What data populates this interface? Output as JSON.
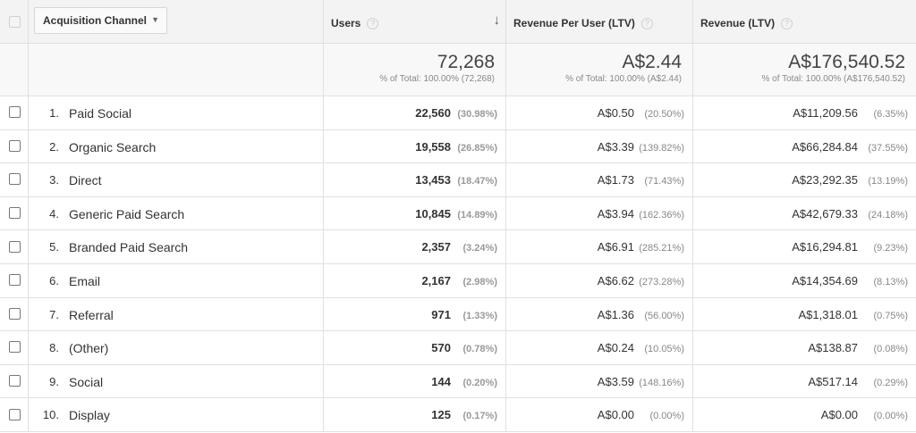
{
  "header": {
    "dimension_label": "Acquisition Channel",
    "columns": [
      {
        "label": "Users"
      },
      {
        "label": "Revenue Per User (LTV)"
      },
      {
        "label": "Revenue (LTV)"
      }
    ],
    "help_glyph": "?",
    "sort_glyph": "↓",
    "caret_glyph": "▼"
  },
  "totals": {
    "users": {
      "value": "72,268",
      "sub": "% of Total: 100.00% (72,268)"
    },
    "rpu": {
      "value": "A$2.44",
      "sub": "% of Total: 100.00% (A$2.44)"
    },
    "revenue": {
      "value": "A$176,540.52",
      "sub": "% of Total: 100.00% (A$176,540.52)"
    }
  },
  "rows": [
    {
      "rank": "1.",
      "channel": "Paid Social",
      "users": "22,560",
      "users_pct": "(30.98%)",
      "rpu": "A$0.50",
      "rpu_pct": "(20.50%)",
      "revenue": "A$11,209.56",
      "revenue_pct": "(6.35%)"
    },
    {
      "rank": "2.",
      "channel": "Organic Search",
      "users": "19,558",
      "users_pct": "(26.85%)",
      "rpu": "A$3.39",
      "rpu_pct": "(139.82%)",
      "revenue": "A$66,284.84",
      "revenue_pct": "(37.55%)"
    },
    {
      "rank": "3.",
      "channel": "Direct",
      "users": "13,453",
      "users_pct": "(18.47%)",
      "rpu": "A$1.73",
      "rpu_pct": "(71.43%)",
      "revenue": "A$23,292.35",
      "revenue_pct": "(13.19%)"
    },
    {
      "rank": "4.",
      "channel": "Generic Paid Search",
      "users": "10,845",
      "users_pct": "(14.89%)",
      "rpu": "A$3.94",
      "rpu_pct": "(162.36%)",
      "revenue": "A$42,679.33",
      "revenue_pct": "(24.18%)"
    },
    {
      "rank": "5.",
      "channel": "Branded Paid Search",
      "users": "2,357",
      "users_pct": "(3.24%)",
      "rpu": "A$6.91",
      "rpu_pct": "(285.21%)",
      "revenue": "A$16,294.81",
      "revenue_pct": "(9.23%)"
    },
    {
      "rank": "6.",
      "channel": "Email",
      "users": "2,167",
      "users_pct": "(2.98%)",
      "rpu": "A$6.62",
      "rpu_pct": "(273.28%)",
      "revenue": "A$14,354.69",
      "revenue_pct": "(8.13%)"
    },
    {
      "rank": "7.",
      "channel": "Referral",
      "users": "971",
      "users_pct": "(1.33%)",
      "rpu": "A$1.36",
      "rpu_pct": "(56.00%)",
      "revenue": "A$1,318.01",
      "revenue_pct": "(0.75%)"
    },
    {
      "rank": "8.",
      "channel": "(Other)",
      "users": "570",
      "users_pct": "(0.78%)",
      "rpu": "A$0.24",
      "rpu_pct": "(10.05%)",
      "revenue": "A$138.87",
      "revenue_pct": "(0.08%)"
    },
    {
      "rank": "9.",
      "channel": "Social",
      "users": "144",
      "users_pct": "(0.20%)",
      "rpu": "A$3.59",
      "rpu_pct": "(148.16%)",
      "revenue": "A$517.14",
      "revenue_pct": "(0.29%)"
    },
    {
      "rank": "10.",
      "channel": "Display",
      "users": "125",
      "users_pct": "(0.17%)",
      "rpu": "A$0.00",
      "rpu_pct": "(0.00%)",
      "revenue": "A$0.00",
      "revenue_pct": "(0.00%)"
    }
  ]
}
